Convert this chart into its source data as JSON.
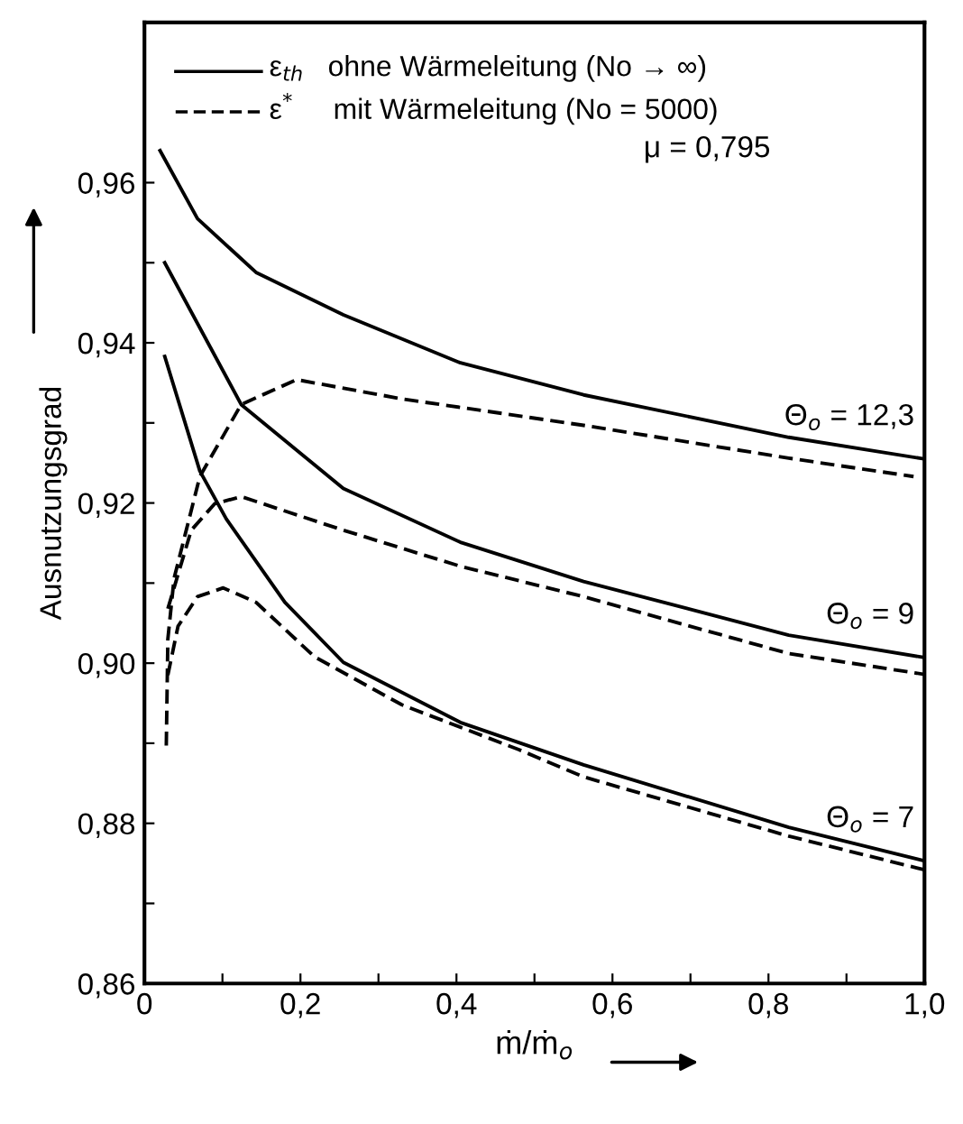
{
  "chart_data": {
    "type": "line",
    "xlabel": "ṁ/ṁ$_{o}$",
    "ylabel": "Ausnutzungsgrad",
    "xlim": [
      0,
      1.0
    ],
    "ylim": [
      0.86,
      0.98
    ],
    "xticks": [
      {
        "value": 0,
        "label": "0"
      },
      {
        "value": 0.1,
        "label": null
      },
      {
        "value": 0.2,
        "label": "0,2"
      },
      {
        "value": 0.3,
        "label": null
      },
      {
        "value": 0.4,
        "label": "0,4"
      },
      {
        "value": 0.5,
        "label": null
      },
      {
        "value": 0.6,
        "label": "0,6"
      },
      {
        "value": 0.7,
        "label": null
      },
      {
        "value": 0.8,
        "label": "0,8"
      },
      {
        "value": 0.9,
        "label": null
      },
      {
        "value": 1.0,
        "label": "1,0"
      }
    ],
    "yticks": [
      {
        "value": 0.86,
        "label": "0,86"
      },
      {
        "value": 0.87,
        "label": null
      },
      {
        "value": 0.88,
        "label": "0,88"
      },
      {
        "value": 0.89,
        "label": null
      },
      {
        "value": 0.9,
        "label": "0,90"
      },
      {
        "value": 0.91,
        "label": null
      },
      {
        "value": 0.92,
        "label": "0,92"
      },
      {
        "value": 0.93,
        "label": null
      },
      {
        "value": 0.94,
        "label": "0,94"
      },
      {
        "value": 0.95,
        "label": null
      },
      {
        "value": 0.96,
        "label": "0,96"
      }
    ],
    "grid": false,
    "series": [
      {
        "color": "#000000",
        "line_style": "solid",
        "x": [
          0.02,
          0.068,
          0.143,
          0.255,
          0.405,
          0.563,
          0.826,
          1.0
        ],
        "values": [
          0.964,
          0.9555,
          0.9488,
          0.9435,
          0.9375,
          0.9335,
          0.9282,
          0.9255
        ]
      },
      {
        "color": "#000000",
        "line_style": "dashed",
        "x": [
          0.028,
          0.03,
          0.038,
          0.071,
          0.124,
          0.195,
          0.33,
          0.563,
          0.826,
          0.986
        ],
        "values": [
          0.8897,
          0.903,
          0.9106,
          0.9233,
          0.9323,
          0.9354,
          0.933,
          0.9297,
          0.9256,
          0.9233
        ]
      },
      {
        "color": "#000000",
        "line_style": "solid",
        "x": [
          0.026,
          0.124,
          0.255,
          0.405,
          0.563,
          0.826,
          1.0
        ],
        "values": [
          0.95,
          0.9323,
          0.9218,
          0.9151,
          0.9102,
          0.9035,
          0.9007
        ]
      },
      {
        "color": "#000000",
        "line_style": "dashed",
        "x": [
          0.03,
          0.06,
          0.09,
          0.124,
          0.255,
          0.405,
          0.563,
          0.826,
          1.0
        ],
        "values": [
          0.9068,
          0.9166,
          0.9199,
          0.9208,
          0.9166,
          0.9121,
          0.9083,
          0.9012,
          0.8986
        ]
      },
      {
        "color": "#000000",
        "line_style": "solid",
        "x": [
          0.026,
          0.071,
          0.105,
          0.18,
          0.255,
          0.405,
          0.563,
          0.826,
          1.0
        ],
        "values": [
          0.9383,
          0.924,
          0.918,
          0.9076,
          0.9001,
          0.8926,
          0.8873,
          0.8795,
          0.8753
        ]
      },
      {
        "color": "#000000",
        "line_style": "dashed",
        "x": [
          0.03,
          0.043,
          0.068,
          0.101,
          0.143,
          0.218,
          0.33,
          0.48,
          0.563,
          0.826,
          1.0
        ],
        "values": [
          0.8985,
          0.9046,
          0.9083,
          0.9094,
          0.9076,
          0.9008,
          0.8948,
          0.8892,
          0.8858,
          0.8784,
          0.8742
        ]
      }
    ],
    "annotations": [
      "Θ$_{o}$ = 12,3",
      "Θ$_{o}$ = 9",
      "Θ$_{o}$ = 7",
      "ε$_{th}$   ohne Wärmeleitung (No → ∞)",
      "ε$^{*}$     mit Wärmeleitung (No = 5000)",
      "μ = 0,795"
    ]
  }
}
